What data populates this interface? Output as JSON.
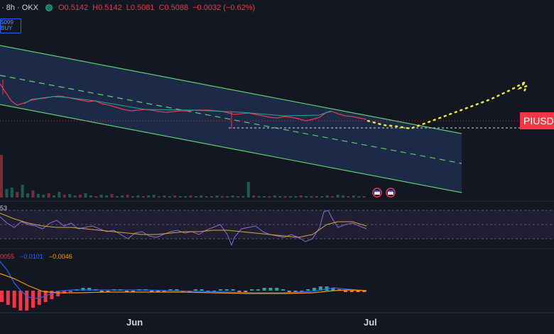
{
  "header": {
    "symbol": "· 8h · OKX",
    "open": "O0.5142",
    "high": "H0.5142",
    "low": "L0.5081",
    "close": "C0.5088",
    "change": "−0.0032 (−0.62%)"
  },
  "price_box": {
    "value": "5099",
    "action": "BUY"
  },
  "price_tag": "PIUSD",
  "rsi_label": "53",
  "macd": {
    "v1": "0055",
    "v2": "−0.0101",
    "v3": "−0.0046"
  },
  "xaxis": {
    "jun": "Jun",
    "jul": "Jul"
  },
  "colors": {
    "channel": "#5fcf6a",
    "fill": "#1c2a4a",
    "projection": "#f0e442",
    "tag": "#f23645",
    "rsi": "#8e6bd6",
    "rsi_ma": "#d3a93b"
  },
  "icons": [
    "calendar-event-icon",
    "calendar-event-icon"
  ]
}
